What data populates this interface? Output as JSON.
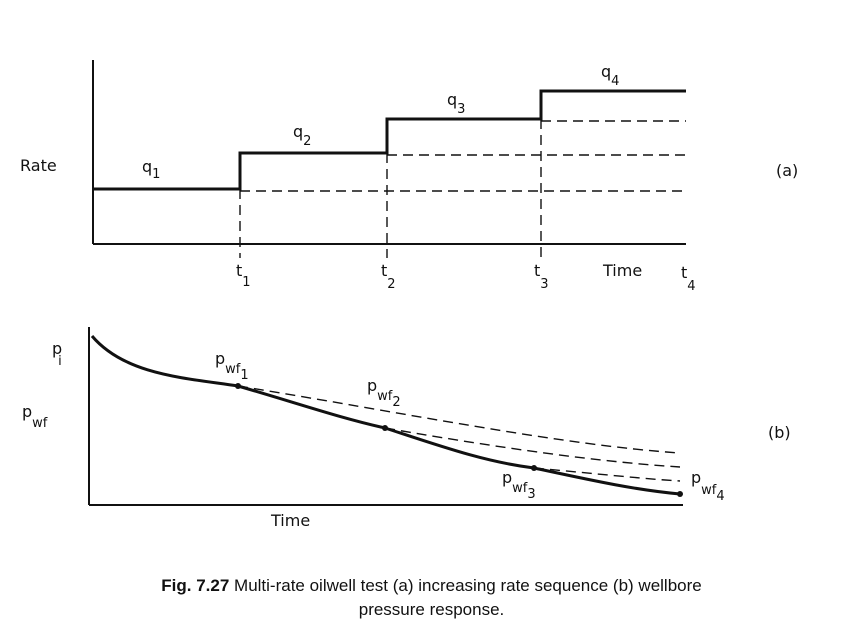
{
  "panel_a": {
    "y_label": "Rate",
    "tag": "(a)",
    "time_label": "Time",
    "steps": [
      {
        "q": "q",
        "q_sub": "1"
      },
      {
        "q": "q",
        "q_sub": "2"
      },
      {
        "q": "q",
        "q_sub": "3"
      },
      {
        "q": "q",
        "q_sub": "4"
      }
    ],
    "times": [
      {
        "t": "t",
        "t_sub": "1"
      },
      {
        "t": "t",
        "t_sub": "2"
      },
      {
        "t": "t",
        "t_sub": "3"
      },
      {
        "t": "t",
        "t_sub": "4"
      }
    ]
  },
  "panel_b": {
    "tag": "(b)",
    "time_label": "Time",
    "pi_label": "p",
    "pi_sub": "i",
    "pwf_label": "p",
    "pwf_sub": "wf",
    "points": [
      {
        "p": "p",
        "sub": "wf",
        "subsub": "1"
      },
      {
        "p": "p",
        "sub": "wf",
        "subsub": "2"
      },
      {
        "p": "p",
        "sub": "wf",
        "subsub": "3"
      },
      {
        "p": "p",
        "sub": "wf",
        "subsub": "4"
      }
    ]
  },
  "caption": {
    "number": "Fig. 7.27",
    "line1": "Multi-rate oilwell test (a) increasing rate sequence (b) wellbore",
    "line2": "pressure response."
  }
}
